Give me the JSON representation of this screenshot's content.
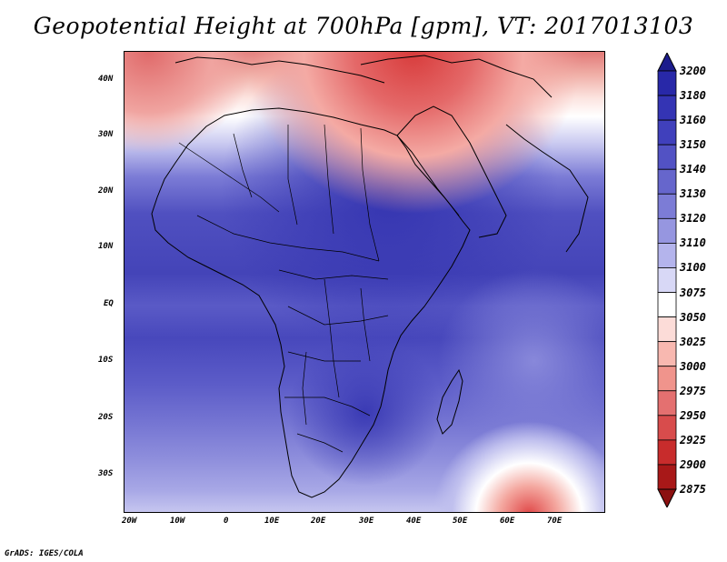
{
  "title": "Geopotential Height at 700hPa [gpm], VT: 2017013103",
  "credit": "GrADS: IGES/COLA",
  "map": {
    "region": "Africa and Middle East",
    "lon_range": [
      -23,
      80
    ],
    "lat_range": [
      -37,
      45
    ],
    "x_ticks": [
      "20W",
      "10W",
      "0",
      "10E",
      "20E",
      "30E",
      "40E",
      "50E",
      "60E",
      "70E"
    ],
    "y_ticks": [
      "40N",
      "30N",
      "20N",
      "10N",
      "EQ",
      "10S",
      "20S",
      "30S"
    ]
  },
  "colorbar": {
    "levels": [
      "3200",
      "3180",
      "3160",
      "3150",
      "3140",
      "3130",
      "3120",
      "3110",
      "3100",
      "3075",
      "3050",
      "3025",
      "3000",
      "2975",
      "2950",
      "2925",
      "2900",
      "2875"
    ],
    "colors": [
      "#1c1c8c",
      "#2828a8",
      "#3434b4",
      "#4040bc",
      "#5252c4",
      "#6666cc",
      "#7c7cd6",
      "#9696e0",
      "#b4b4ec",
      "#d8d8f6",
      "#ffffff",
      "#fcdcd8",
      "#f8b8b0",
      "#f0948c",
      "#e47070",
      "#d84c4c",
      "#c82c2c",
      "#a81818",
      "#8c1010"
    ]
  }
}
